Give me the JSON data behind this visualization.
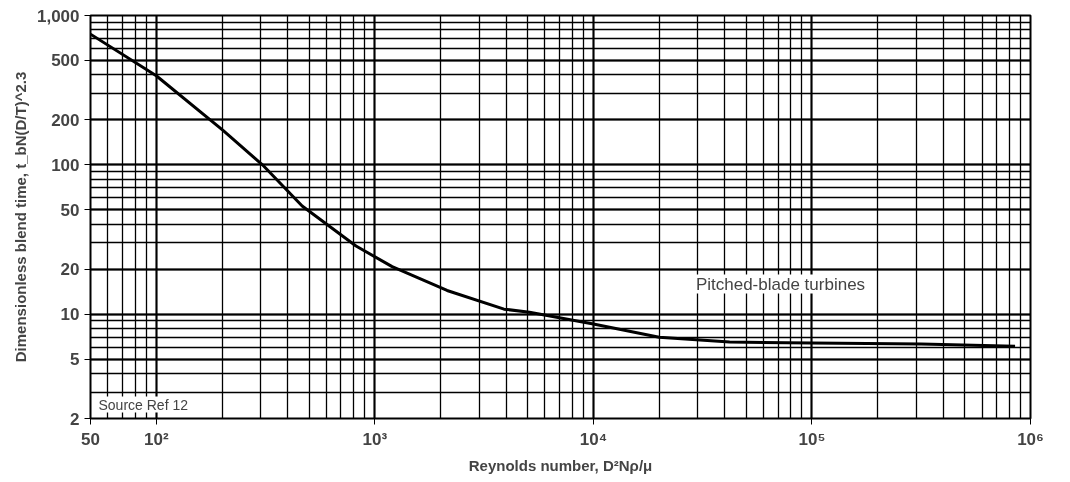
{
  "chart_data": {
    "type": "line",
    "xlabel": "Reynolds number, D²Nρ/μ",
    "ylabel": "Dimensionless blend time, t_bN(D/T)^2.3",
    "x": [
      50,
      100,
      202,
      306,
      465,
      820,
      1200,
      2140,
      3900,
      5100,
      10000,
      20000,
      42000,
      100000,
      316000,
      850000
    ],
    "series": [
      {
        "color": "#000000",
        "values": [
          750,
          395,
          170,
          100,
          53,
          28.6,
          20.8,
          14.4,
          10.8,
          10.3,
          8.6,
          7.0,
          6.5,
          6.4,
          6.3,
          6.1
        ]
      }
    ],
    "log": "xy",
    "xlim": [
      50,
      1000000
    ],
    "ylim": [
      2,
      1000
    ],
    "xticks": [
      50,
      {
        "value": 100,
        "label": "10²"
      },
      {
        "value": 1000,
        "label": "10³"
      },
      {
        "value": 10000,
        "label": "10⁴"
      },
      {
        "value": 100000,
        "label": "10⁵"
      },
      {
        "value": 1000000,
        "label": "10⁶"
      }
    ],
    "yticks": [
      2,
      5,
      10,
      20,
      50,
      100,
      200,
      500,
      {
        "value": 1000,
        "label": "1,000"
      }
    ],
    "grid": true,
    "marker": "none",
    "line_style": "solid",
    "annotations": [
      "Pitched-blade turbines",
      "Source  Ref  12"
    ]
  }
}
